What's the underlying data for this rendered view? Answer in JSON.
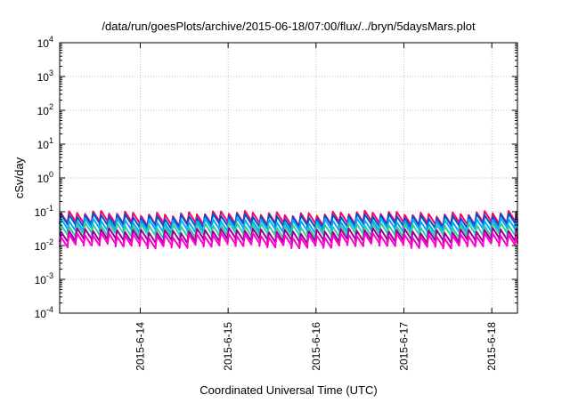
{
  "chart_data": {
    "type": "line",
    "title": "/data/run/goesPlots/archive/2015-06-18/07:00/flux/../bryn/5daysMars.plot",
    "xlabel": "Coordinated Universal Time (UTC)",
    "ylabel": "cSv/day",
    "xscale": "time",
    "xlim": [
      "2015-06-13T02:00",
      "2015-06-18T07:00"
    ],
    "x_ticks": [
      "2015-6-14",
      "2015-6-15",
      "2015-6-16",
      "2015-6-17",
      "2015-6-18"
    ],
    "yscale": "log",
    "ylim": [
      0.0001,
      10000
    ],
    "y_ticks": [
      {
        "base": "10",
        "exp": "-4"
      },
      {
        "base": "10",
        "exp": "-3"
      },
      {
        "base": "10",
        "exp": "-2"
      },
      {
        "base": "10",
        "exp": "-1"
      },
      {
        "base": "10",
        "exp": "0"
      },
      {
        "base": "10",
        "exp": "1"
      },
      {
        "base": "10",
        "exp": "2"
      },
      {
        "base": "10",
        "exp": "3"
      },
      {
        "base": "10",
        "exp": "4"
      }
    ],
    "grid": true,
    "legend": "none",
    "pattern": "sawtooth, ~11 cycles per day (jump up then decay)",
    "series": [
      {
        "color": "#ff0066",
        "peak": 0.09,
        "trough": 0.045
      },
      {
        "color": "#0055cc",
        "peak": 0.075,
        "trough": 0.038
      },
      {
        "color": "#00aaff",
        "peak": 0.055,
        "trough": 0.028
      },
      {
        "color": "#33cc99",
        "peak": 0.04,
        "trough": 0.02
      },
      {
        "color": "#990099",
        "peak": 0.028,
        "trough": 0.014
      },
      {
        "color": "#ff00cc",
        "peak": 0.02,
        "trough": 0.01
      }
    ]
  }
}
